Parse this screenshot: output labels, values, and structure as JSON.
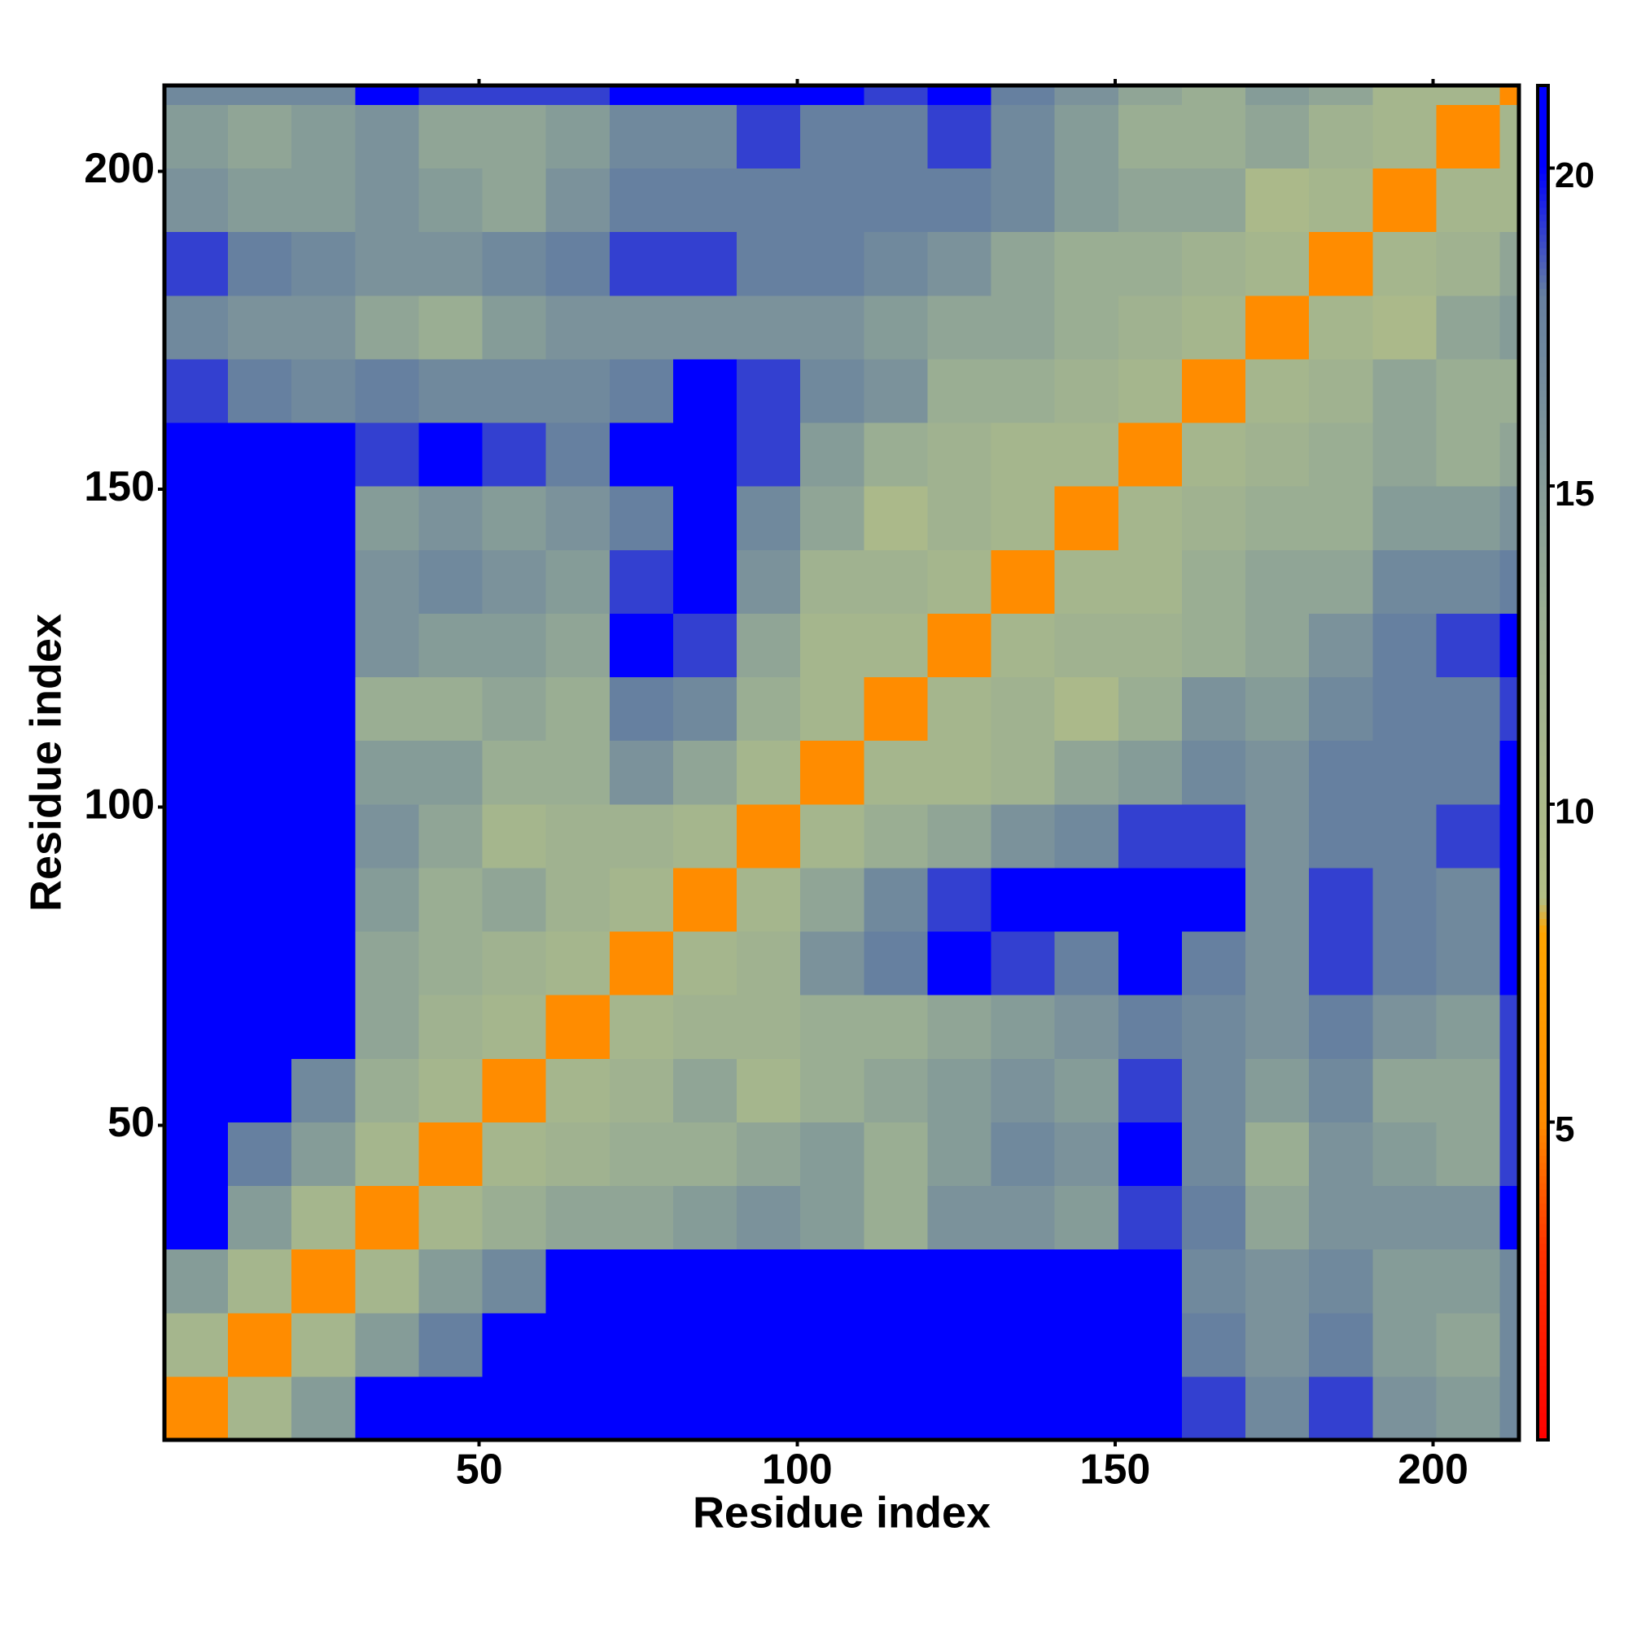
{
  "chart_data": {
    "type": "heatmap",
    "xlabel": "Residue index",
    "ylabel": "Residue index",
    "xlim": [
      0.5,
      213.5
    ],
    "ylim": [
      0.5,
      213.5
    ],
    "xticks": [
      50,
      100,
      150,
      200
    ],
    "yticks": [
      50,
      100,
      150,
      200
    ],
    "xbins": [
      0.5,
      10.5,
      20.5,
      30.5,
      40.5,
      50.5,
      60.5,
      70.5,
      80.5,
      90.5,
      100.5,
      110.5,
      120.5,
      130.5,
      140.5,
      150.5,
      160.5,
      170.5,
      180.5,
      190.5,
      200.5,
      210.5,
      213.5
    ],
    "ybins": [
      0.5,
      10.5,
      20.5,
      30.5,
      40.5,
      50.5,
      60.5,
      70.5,
      80.5,
      90.5,
      100.5,
      110.5,
      120.5,
      130.5,
      140.5,
      150.5,
      160.5,
      170.5,
      180.5,
      190.5,
      200.5,
      210.5,
      213.5
    ],
    "z": [
      [
        5,
        11,
        15,
        21,
        21,
        21,
        21,
        21,
        21,
        21,
        21,
        21,
        21,
        21,
        21,
        21,
        19,
        17,
        19,
        16,
        15,
        17
      ],
      [
        11,
        5,
        11,
        15,
        18,
        21,
        21,
        21,
        21,
        21,
        21,
        21,
        21,
        21,
        21,
        21,
        18,
        16,
        18,
        15,
        14,
        17
      ],
      [
        15,
        11,
        5,
        11,
        15,
        17,
        21,
        21,
        21,
        21,
        21,
        21,
        21,
        21,
        21,
        20,
        17,
        16,
        17,
        15,
        15,
        17
      ],
      [
        21,
        15,
        11,
        5,
        11,
        13,
        14,
        14,
        15,
        16,
        15,
        13,
        16,
        16,
        15,
        19,
        18,
        14,
        16,
        16,
        16,
        20
      ],
      [
        21,
        18,
        15,
        11,
        5,
        11,
        12,
        13,
        13,
        14,
        15,
        13,
        15,
        17,
        16,
        20,
        17,
        13,
        16,
        15,
        14,
        19
      ],
      [
        21,
        21,
        17,
        13,
        11,
        5,
        11,
        12,
        14,
        11,
        13,
        14,
        15,
        16,
        15,
        19,
        17,
        15,
        17,
        14,
        14,
        19
      ],
      [
        21,
        21,
        21,
        14,
        12,
        11,
        5,
        11,
        12,
        12,
        13,
        13,
        14,
        15,
        16,
        18,
        17,
        16,
        18,
        16,
        15,
        19
      ],
      [
        21,
        21,
        21,
        14,
        13,
        12,
        11,
        5,
        11,
        12,
        16,
        18,
        20,
        19,
        18,
        20,
        18,
        16,
        19,
        18,
        17,
        20
      ],
      [
        21,
        21,
        21,
        15,
        13,
        14,
        12,
        11,
        5,
        11,
        14,
        17,
        19,
        20,
        21,
        21,
        20,
        16,
        19,
        18,
        17,
        21
      ],
      [
        21,
        21,
        21,
        16,
        14,
        11,
        12,
        12,
        11,
        5,
        11,
        13,
        14,
        16,
        17,
        19,
        19,
        16,
        18,
        18,
        19,
        21
      ],
      [
        21,
        21,
        21,
        15,
        15,
        13,
        13,
        16,
        14,
        11,
        5,
        11,
        11,
        12,
        14,
        15,
        17,
        16,
        18,
        18,
        18,
        20
      ],
      [
        21,
        21,
        21,
        13,
        13,
        14,
        13,
        18,
        17,
        13,
        11,
        5,
        11,
        12,
        10,
        13,
        16,
        15,
        17,
        18,
        18,
        19
      ],
      [
        21,
        21,
        21,
        16,
        15,
        15,
        14,
        20,
        19,
        14,
        11,
        11,
        5,
        11,
        12,
        12,
        13,
        14,
        16,
        18,
        19,
        20
      ],
      [
        21,
        21,
        21,
        16,
        17,
        16,
        15,
        19,
        20,
        16,
        12,
        12,
        11,
        5,
        11,
        11,
        13,
        14,
        14,
        17,
        17,
        18
      ],
      [
        21,
        21,
        21,
        15,
        16,
        15,
        16,
        18,
        21,
        17,
        14,
        10,
        12,
        11,
        5,
        11,
        12,
        13,
        13,
        15,
        15,
        16
      ],
      [
        21,
        21,
        20,
        19,
        20,
        19,
        18,
        20,
        21,
        19,
        15,
        13,
        12,
        11,
        11,
        5,
        11,
        12,
        13,
        14,
        13,
        14
      ],
      [
        19,
        18,
        17,
        18,
        17,
        17,
        17,
        18,
        20,
        19,
        17,
        16,
        13,
        13,
        12,
        11,
        5,
        11,
        12,
        14,
        13,
        13
      ],
      [
        17,
        16,
        16,
        14,
        13,
        15,
        16,
        16,
        16,
        16,
        16,
        15,
        14,
        14,
        13,
        12,
        11,
        5,
        11,
        10,
        14,
        15
      ],
      [
        19,
        18,
        17,
        16,
        16,
        17,
        18,
        19,
        19,
        18,
        18,
        17,
        16,
        14,
        13,
        13,
        12,
        11,
        5,
        11,
        12,
        14
      ],
      [
        16,
        15,
        15,
        16,
        15,
        14,
        16,
        18,
        18,
        18,
        18,
        18,
        18,
        17,
        15,
        14,
        14,
        10,
        11,
        5,
        11,
        11
      ],
      [
        15,
        14,
        15,
        16,
        14,
        14,
        15,
        17,
        17,
        19,
        18,
        18,
        19,
        17,
        15,
        13,
        13,
        14,
        12,
        11,
        5,
        11
      ],
      [
        17,
        17,
        17,
        20,
        19,
        19,
        19,
        20,
        21,
        21,
        20,
        19,
        20,
        18,
        16,
        14,
        13,
        15,
        14,
        11,
        11,
        5
      ]
    ],
    "zlim": [
      0,
      21.3
    ],
    "zticks": [
      5,
      10,
      15,
      20
    ],
    "colorscale": [
      [
        0,
        "#ff0000"
      ],
      [
        3,
        "#ff3300"
      ],
      [
        5,
        "#ff8c00"
      ],
      [
        8,
        "#ffa500"
      ],
      [
        8.5,
        "#b3bf86"
      ],
      [
        13,
        "#9aae93"
      ],
      [
        18,
        "#6680a0"
      ],
      [
        20,
        "#0000ff"
      ],
      [
        21.3,
        "#0000ff"
      ]
    ]
  }
}
